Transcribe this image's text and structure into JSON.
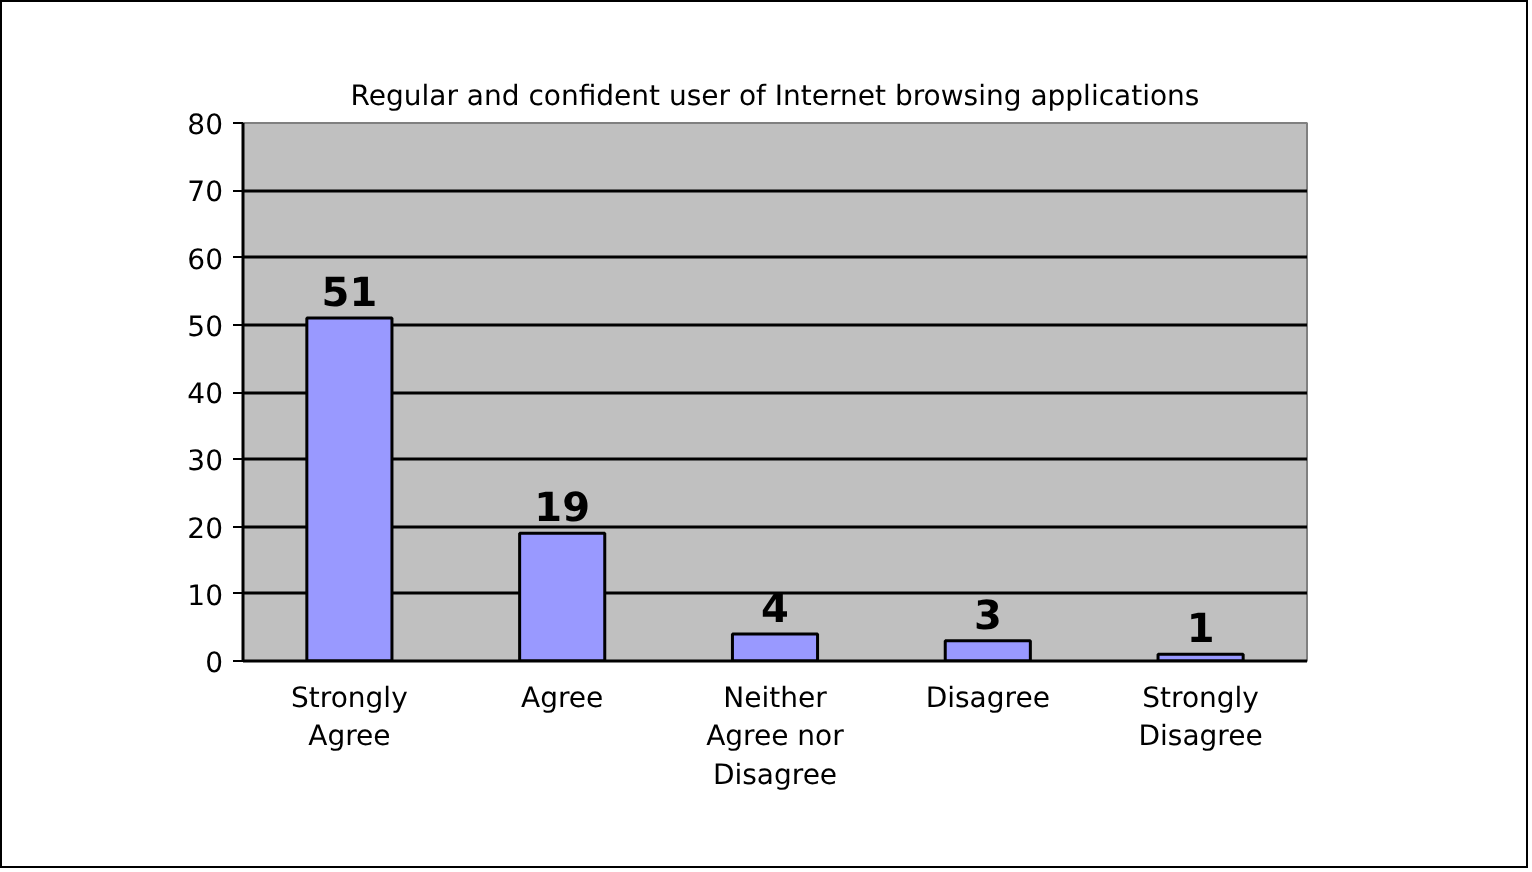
{
  "chart_data": {
    "type": "bar",
    "title": "Regular and confident user of Internet browsing applications",
    "categories": [
      "Strongly Agree",
      "Agree",
      "Neither Agree nor Disagree",
      "Disagree",
      "Strongly Disagree"
    ],
    "values": [
      51,
      19,
      4,
      3,
      1
    ],
    "color": "#9999ff",
    "ylim": [
      0,
      80
    ],
    "yticks": [
      0,
      10,
      20,
      30,
      40,
      50,
      60,
      70,
      80
    ],
    "grid": "y",
    "data_labels": true
  }
}
